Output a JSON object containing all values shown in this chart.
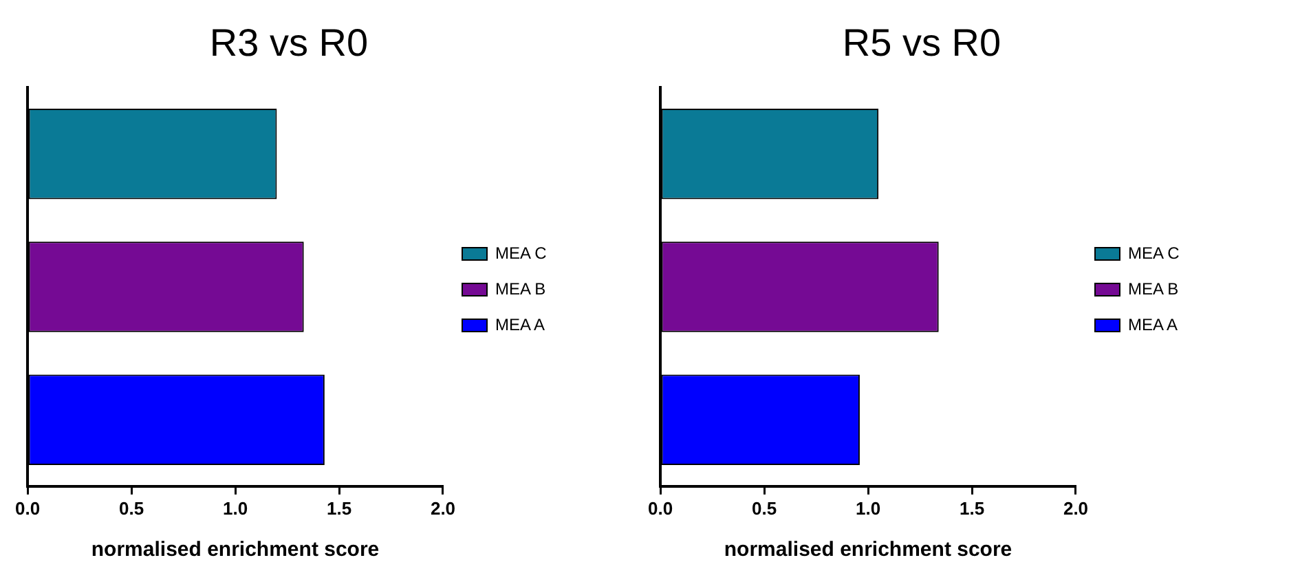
{
  "chart_data": [
    {
      "type": "bar",
      "orientation": "horizontal",
      "title": "R3 vs R0",
      "xlabel": "normalised enrichment score",
      "categories": [
        null,
        null,
        null
      ],
      "series": [
        {
          "name": "MEA C",
          "color": "#0a7a96",
          "values": [
            1.2,
            null,
            null
          ]
        },
        {
          "name": "MEA B",
          "color": "#750a94",
          "values": [
            null,
            1.33,
            null
          ]
        },
        {
          "name": "MEA A",
          "color": "#0000ff",
          "values": [
            null,
            null,
            1.43
          ]
        }
      ],
      "xlim": [
        0,
        2
      ],
      "xticks": [
        {
          "value": 0,
          "label": "0.0"
        },
        {
          "value": 0.5,
          "label": "0.5"
        },
        {
          "value": 1,
          "label": "1.0"
        },
        {
          "value": 1.5,
          "label": "1.5"
        },
        {
          "value": 2,
          "label": "2.0"
        }
      ],
      "grid": false,
      "legend": "right"
    },
    {
      "type": "bar",
      "orientation": "horizontal",
      "title": "R5 vs R0",
      "xlabel": "normalised enrichment score",
      "categories": [
        null,
        null,
        null
      ],
      "series": [
        {
          "name": "MEA C",
          "color": "#0a7a96",
          "values": [
            1.05,
            null,
            null
          ]
        },
        {
          "name": "MEA B",
          "color": "#750a94",
          "values": [
            null,
            1.34,
            null
          ]
        },
        {
          "name": "MEA A",
          "color": "#0000ff",
          "values": [
            null,
            null,
            0.96
          ]
        }
      ],
      "xlim": [
        0,
        2
      ],
      "xticks": [
        {
          "value": 0,
          "label": "0.0"
        },
        {
          "value": 0.5,
          "label": "0.5"
        },
        {
          "value": 1,
          "label": "1.0"
        },
        {
          "value": 1.5,
          "label": "1.5"
        },
        {
          "value": 2,
          "label": "2.0"
        }
      ],
      "grid": false,
      "legend": "right"
    }
  ]
}
